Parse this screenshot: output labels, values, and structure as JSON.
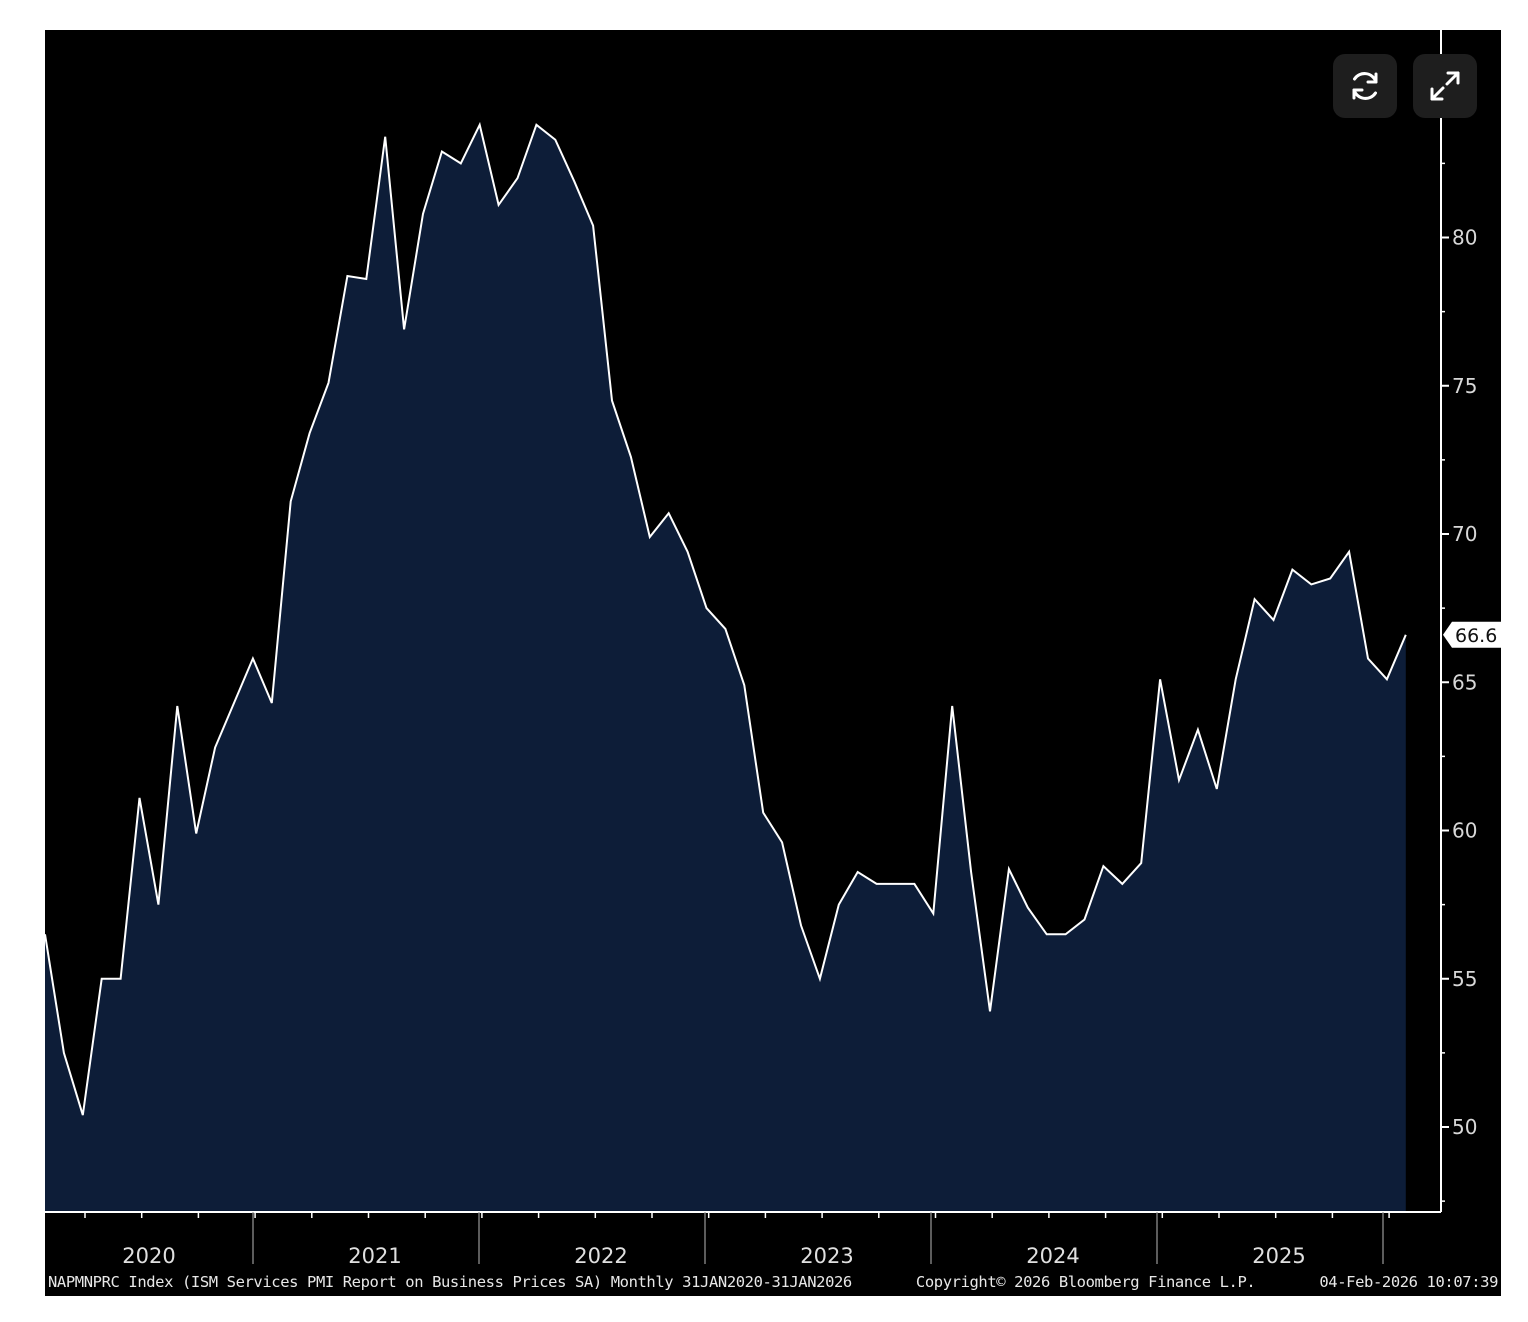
{
  "chart_data": {
    "type": "area",
    "footer": {
      "description": "NAPMNPRC Index (ISM Services PMI Report on Business Prices SA) Monthly 31JAN2020-31JAN2026",
      "copyright": "Copyright© 2026 Bloomberg Finance L.P.",
      "timestamp": "04-Feb-2026 10:07:39"
    },
    "x_range": [
      "2020-01",
      "2026-01"
    ],
    "x_tick_labels": [
      "2020",
      "2021",
      "2022",
      "2023",
      "2024",
      "2025"
    ],
    "y_ticks": [
      50,
      55,
      60,
      65,
      70,
      75,
      80
    ],
    "y_tick_labels": [
      "50",
      "55",
      "60",
      "65",
      "70",
      "75",
      "80"
    ],
    "ylim": [
      47.2,
      84.5
    ],
    "last_value_label": "66.6",
    "series": [
      {
        "values": [
          56.5,
          52.5,
          50.4,
          55.0,
          55.0,
          61.1,
          57.5,
          64.2,
          59.9,
          62.8,
          64.3,
          65.8,
          64.3,
          71.1,
          73.4,
          75.1,
          78.7,
          78.6,
          83.4,
          76.9,
          80.8,
          82.9,
          82.5,
          83.8,
          81.1,
          82.0,
          83.8,
          83.3,
          81.9,
          80.4,
          74.5,
          72.6,
          69.9,
          70.7,
          69.4,
          67.5,
          66.8,
          64.9,
          60.6,
          59.6,
          56.8,
          55.0,
          57.5,
          58.6,
          58.2,
          58.2,
          58.2,
          57.2,
          64.2,
          58.6,
          53.9,
          58.7,
          57.4,
          56.5,
          56.5,
          57.0,
          58.8,
          58.2,
          58.9,
          65.1,
          61.7,
          63.4,
          61.4,
          65.1,
          67.8,
          67.1,
          68.8,
          68.3,
          68.5,
          69.4,
          65.8,
          65.1,
          66.6
        ]
      }
    ],
    "grid": false,
    "legend": "none"
  },
  "controls": {
    "refresh": "refresh-icon",
    "expand": "expand-icon"
  },
  "colors": {
    "background": "#000000",
    "area_fill": "#0d1d38",
    "line": "#ffffff",
    "axis": "#ffffff",
    "badge": "#ffffff"
  }
}
